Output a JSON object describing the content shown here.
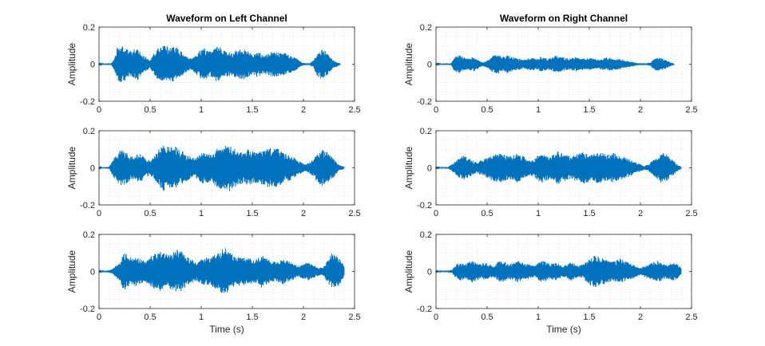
{
  "chart_data": [
    {
      "type": "line",
      "channel": "left",
      "row": 0,
      "title": "Waveform on Left Channel",
      "xlabel": "",
      "ylabel": "Amplitude",
      "xlim": [
        0,
        2.5
      ],
      "ylim": [
        -0.2,
        0.2
      ],
      "grid": "minor",
      "duration": 2.36,
      "x_ticks": [
        "0",
        "0.5",
        "1",
        "1.5",
        "2",
        "2.5"
      ],
      "y_ticks": [
        "0.2",
        "0",
        "-0.2"
      ],
      "envelope": {
        "x": [
          0,
          0.12,
          0.15,
          0.18,
          0.22,
          0.26,
          0.3,
          0.34,
          0.38,
          0.42,
          0.46,
          0.5,
          0.54,
          0.58,
          0.62,
          0.66,
          0.7,
          0.74,
          0.78,
          0.82,
          0.86,
          0.9,
          0.94,
          0.98,
          1.02,
          1.06,
          1.1,
          1.14,
          1.18,
          1.22,
          1.26,
          1.3,
          1.34,
          1.38,
          1.42,
          1.46,
          1.5,
          1.54,
          1.58,
          1.62,
          1.66,
          1.7,
          1.74,
          1.78,
          1.82,
          1.86,
          1.9,
          1.94,
          1.98,
          2.02,
          2.06,
          2.1,
          2.14,
          2.18,
          2.22,
          2.26,
          2.3,
          2.36
        ],
        "y": [
          0.002,
          0.005,
          0.03,
          0.09,
          0.1,
          0.09,
          0.07,
          0.08,
          0.09,
          0.05,
          0.04,
          0.02,
          0.06,
          0.09,
          0.1,
          0.1,
          0.09,
          0.1,
          0.08,
          0.06,
          0.04,
          0.03,
          0.05,
          0.07,
          0.09,
          0.08,
          0.07,
          0.09,
          0.1,
          0.08,
          0.07,
          0.06,
          0.08,
          0.09,
          0.08,
          0.07,
          0.06,
          0.07,
          0.06,
          0.05,
          0.06,
          0.07,
          0.07,
          0.06,
          0.06,
          0.05,
          0.04,
          0.03,
          0.01,
          0.005,
          0.005,
          0.02,
          0.07,
          0.08,
          0.07,
          0.04,
          0.02,
          0.005
        ]
      }
    },
    {
      "type": "line",
      "channel": "right",
      "row": 0,
      "title": "Waveform on Right Channel",
      "xlabel": "",
      "ylabel": "Amplitude",
      "xlim": [
        0,
        2.5
      ],
      "ylim": [
        -0.2,
        0.2
      ],
      "grid": "minor",
      "duration": 2.33,
      "x_ticks": [
        "0",
        "0.5",
        "1",
        "1.5",
        "2",
        "2.5"
      ],
      "y_ticks": [
        "0.2",
        "0",
        "-0.2"
      ],
      "envelope": {
        "x": [
          0,
          0.15,
          0.18,
          0.22,
          0.26,
          0.3,
          0.34,
          0.38,
          0.42,
          0.46,
          0.5,
          0.54,
          0.58,
          0.62,
          0.66,
          0.7,
          0.74,
          0.78,
          0.82,
          0.86,
          0.9,
          0.94,
          0.98,
          1.02,
          1.06,
          1.1,
          1.14,
          1.18,
          1.22,
          1.26,
          1.3,
          1.34,
          1.38,
          1.42,
          1.46,
          1.5,
          1.54,
          1.58,
          1.62,
          1.66,
          1.7,
          1.74,
          1.78,
          1.82,
          1.86,
          1.9,
          1.94,
          1.98,
          2.02,
          2.06,
          2.1,
          2.14,
          2.18,
          2.22,
          2.26,
          2.3,
          2.33
        ],
        "y": [
          0.002,
          0.005,
          0.04,
          0.05,
          0.04,
          0.03,
          0.035,
          0.04,
          0.02,
          0.01,
          0.02,
          0.04,
          0.05,
          0.05,
          0.04,
          0.05,
          0.04,
          0.035,
          0.03,
          0.025,
          0.03,
          0.035,
          0.03,
          0.04,
          0.035,
          0.03,
          0.04,
          0.05,
          0.04,
          0.035,
          0.03,
          0.035,
          0.04,
          0.035,
          0.03,
          0.035,
          0.03,
          0.025,
          0.03,
          0.035,
          0.035,
          0.03,
          0.03,
          0.025,
          0.02,
          0.015,
          0.01,
          0.005,
          0.005,
          0.005,
          0.01,
          0.035,
          0.035,
          0.03,
          0.02,
          0.01,
          0.003
        ]
      }
    },
    {
      "type": "line",
      "channel": "left",
      "row": 1,
      "title": "",
      "xlabel": "",
      "ylabel": "Amplitude",
      "xlim": [
        0,
        2.5
      ],
      "ylim": [
        -0.2,
        0.2
      ],
      "grid": "minor",
      "duration": 2.4,
      "x_ticks": [
        "0",
        "0.5",
        "1",
        "1.5",
        "2",
        "2.5"
      ],
      "y_ticks": [
        "0.2",
        "0",
        "-0.2"
      ],
      "envelope": {
        "x": [
          0,
          0.1,
          0.14,
          0.18,
          0.22,
          0.26,
          0.3,
          0.34,
          0.38,
          0.42,
          0.46,
          0.5,
          0.54,
          0.58,
          0.62,
          0.66,
          0.7,
          0.74,
          0.78,
          0.82,
          0.86,
          0.9,
          0.94,
          0.98,
          1.02,
          1.06,
          1.1,
          1.14,
          1.18,
          1.22,
          1.26,
          1.3,
          1.34,
          1.38,
          1.42,
          1.46,
          1.5,
          1.54,
          1.58,
          1.62,
          1.66,
          1.7,
          1.74,
          1.78,
          1.82,
          1.86,
          1.9,
          1.94,
          1.98,
          2.02,
          2.06,
          2.1,
          2.14,
          2.18,
          2.22,
          2.26,
          2.3,
          2.34,
          2.4
        ],
        "y": [
          0.002,
          0.005,
          0.05,
          0.08,
          0.1,
          0.09,
          0.07,
          0.06,
          0.08,
          0.07,
          0.05,
          0.04,
          0.06,
          0.1,
          0.13,
          0.12,
          0.11,
          0.12,
          0.1,
          0.09,
          0.07,
          0.06,
          0.05,
          0.07,
          0.09,
          0.08,
          0.07,
          0.1,
          0.12,
          0.11,
          0.13,
          0.12,
          0.1,
          0.09,
          0.08,
          0.1,
          0.09,
          0.08,
          0.09,
          0.1,
          0.11,
          0.1,
          0.11,
          0.09,
          0.08,
          0.07,
          0.06,
          0.04,
          0.03,
          0.02,
          0.03,
          0.05,
          0.08,
          0.1,
          0.09,
          0.07,
          0.05,
          0.02,
          0.005
        ]
      }
    },
    {
      "type": "line",
      "channel": "right",
      "row": 1,
      "title": "",
      "xlabel": "",
      "ylabel": "Amplitude",
      "xlim": [
        0,
        2.5
      ],
      "ylim": [
        -0.2,
        0.2
      ],
      "grid": "minor",
      "duration": 2.4,
      "x_ticks": [
        "0",
        "0.5",
        "1",
        "1.5",
        "2",
        "2.5"
      ],
      "y_ticks": [
        "0.2",
        "0",
        "-0.2"
      ],
      "envelope": {
        "x": [
          0,
          0.12,
          0.16,
          0.2,
          0.24,
          0.28,
          0.32,
          0.36,
          0.4,
          0.44,
          0.48,
          0.52,
          0.56,
          0.6,
          0.64,
          0.68,
          0.72,
          0.76,
          0.8,
          0.84,
          0.88,
          0.92,
          0.96,
          1.0,
          1.04,
          1.08,
          1.12,
          1.16,
          1.2,
          1.24,
          1.28,
          1.32,
          1.36,
          1.4,
          1.44,
          1.48,
          1.52,
          1.56,
          1.6,
          1.64,
          1.68,
          1.72,
          1.76,
          1.8,
          1.84,
          1.88,
          1.92,
          1.96,
          2.0,
          2.04,
          2.08,
          2.12,
          2.16,
          2.2,
          2.24,
          2.28,
          2.32,
          2.36,
          2.4
        ],
        "y": [
          0.002,
          0.005,
          0.02,
          0.04,
          0.06,
          0.07,
          0.05,
          0.04,
          0.03,
          0.04,
          0.05,
          0.06,
          0.07,
          0.08,
          0.08,
          0.07,
          0.06,
          0.07,
          0.08,
          0.07,
          0.05,
          0.04,
          0.05,
          0.07,
          0.08,
          0.07,
          0.06,
          0.08,
          0.09,
          0.08,
          0.07,
          0.06,
          0.07,
          0.08,
          0.09,
          0.08,
          0.07,
          0.08,
          0.09,
          0.08,
          0.07,
          0.08,
          0.08,
          0.07,
          0.06,
          0.05,
          0.04,
          0.03,
          0.02,
          0.01,
          0.02,
          0.04,
          0.06,
          0.08,
          0.08,
          0.06,
          0.04,
          0.02,
          0.005
        ]
      }
    },
    {
      "type": "line",
      "channel": "left",
      "row": 2,
      "title": "",
      "xlabel": "Time (s)",
      "ylabel": "Amplitude",
      "xlim": [
        0,
        2.5
      ],
      "ylim": [
        -0.2,
        0.2
      ],
      "grid": "minor",
      "duration": 2.4,
      "x_ticks": [
        "0",
        "0.5",
        "1",
        "1.5",
        "2",
        "2.5"
      ],
      "y_ticks": [
        "0.2",
        "0",
        "-0.2"
      ],
      "envelope": {
        "x": [
          0,
          0.08,
          0.12,
          0.16,
          0.2,
          0.24,
          0.28,
          0.32,
          0.36,
          0.4,
          0.44,
          0.48,
          0.52,
          0.56,
          0.6,
          0.64,
          0.68,
          0.72,
          0.76,
          0.8,
          0.84,
          0.88,
          0.92,
          0.96,
          1.0,
          1.04,
          1.08,
          1.12,
          1.16,
          1.2,
          1.24,
          1.28,
          1.32,
          1.36,
          1.4,
          1.44,
          1.48,
          1.52,
          1.56,
          1.6,
          1.64,
          1.68,
          1.72,
          1.76,
          1.8,
          1.84,
          1.88,
          1.92,
          1.96,
          2.0,
          2.04,
          2.08,
          2.12,
          2.16,
          2.2,
          2.24,
          2.28,
          2.32,
          2.36,
          2.4
        ],
        "y": [
          0.002,
          0.005,
          0.01,
          0.03,
          0.05,
          0.1,
          0.09,
          0.07,
          0.08,
          0.07,
          0.06,
          0.07,
          0.09,
          0.1,
          0.11,
          0.1,
          0.09,
          0.1,
          0.12,
          0.11,
          0.09,
          0.07,
          0.06,
          0.05,
          0.07,
          0.08,
          0.07,
          0.09,
          0.1,
          0.12,
          0.13,
          0.1,
          0.09,
          0.08,
          0.07,
          0.08,
          0.07,
          0.06,
          0.08,
          0.09,
          0.07,
          0.06,
          0.05,
          0.06,
          0.07,
          0.06,
          0.05,
          0.04,
          0.03,
          0.04,
          0.05,
          0.04,
          0.03,
          0.02,
          0.03,
          0.06,
          0.1,
          0.09,
          0.07,
          0.03
        ]
      }
    },
    {
      "type": "line",
      "channel": "right",
      "row": 2,
      "title": "",
      "xlabel": "Time (s)",
      "ylabel": "Amplitude",
      "xlim": [
        0,
        2.5
      ],
      "ylim": [
        -0.2,
        0.2
      ],
      "grid": "minor",
      "duration": 2.4,
      "x_ticks": [
        "0",
        "0.5",
        "1",
        "1.5",
        "2",
        "2.5"
      ],
      "y_ticks": [
        "0.2",
        "0",
        "-0.2"
      ],
      "envelope": {
        "x": [
          0,
          0.12,
          0.16,
          0.2,
          0.24,
          0.28,
          0.32,
          0.36,
          0.4,
          0.44,
          0.48,
          0.52,
          0.56,
          0.6,
          0.64,
          0.68,
          0.72,
          0.76,
          0.8,
          0.84,
          0.88,
          0.92,
          0.96,
          1.0,
          1.04,
          1.08,
          1.12,
          1.16,
          1.2,
          1.24,
          1.28,
          1.32,
          1.36,
          1.4,
          1.44,
          1.48,
          1.52,
          1.56,
          1.6,
          1.64,
          1.68,
          1.72,
          1.76,
          1.8,
          1.84,
          1.88,
          1.92,
          1.96,
          2.0,
          2.04,
          2.08,
          2.12,
          2.16,
          2.2,
          2.24,
          2.28,
          2.32,
          2.36,
          2.4
        ],
        "y": [
          0.002,
          0.005,
          0.01,
          0.04,
          0.05,
          0.04,
          0.05,
          0.06,
          0.05,
          0.04,
          0.05,
          0.04,
          0.03,
          0.05,
          0.06,
          0.05,
          0.04,
          0.05,
          0.06,
          0.05,
          0.04,
          0.04,
          0.03,
          0.05,
          0.06,
          0.05,
          0.04,
          0.05,
          0.04,
          0.03,
          0.04,
          0.05,
          0.04,
          0.03,
          0.04,
          0.06,
          0.08,
          0.09,
          0.08,
          0.07,
          0.06,
          0.05,
          0.06,
          0.07,
          0.06,
          0.05,
          0.04,
          0.03,
          0.02,
          0.03,
          0.04,
          0.05,
          0.06,
          0.05,
          0.04,
          0.04,
          0.05,
          0.04,
          0.02
        ]
      }
    }
  ],
  "colors": {
    "line": "#0072BD",
    "grid": "#d9d9d9",
    "axis": "#262626",
    "background": "#ffffff"
  }
}
